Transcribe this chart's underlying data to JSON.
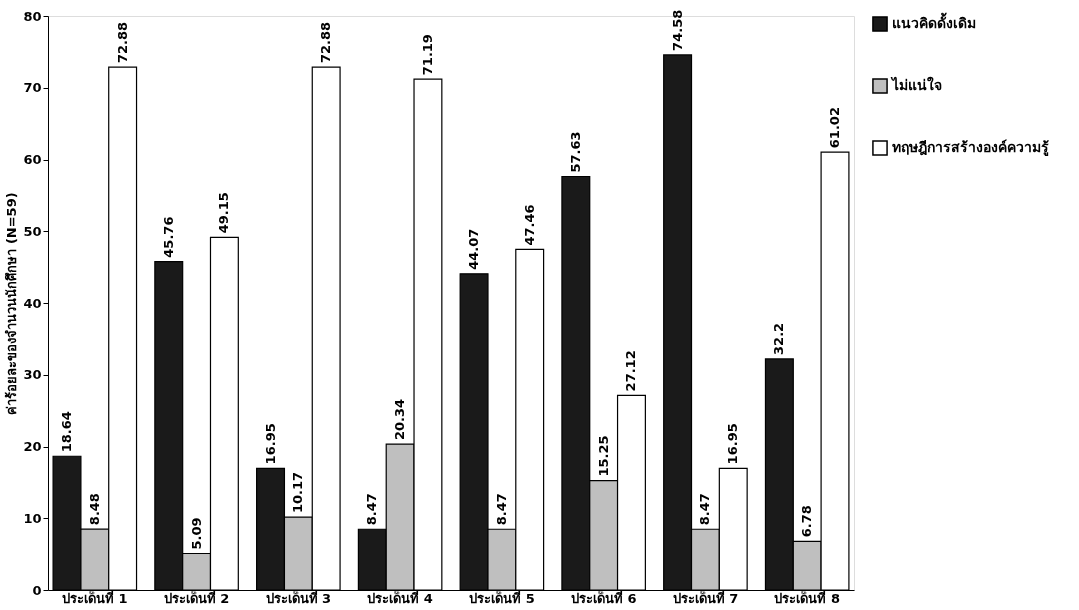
{
  "chart_data": {
    "type": "bar",
    "ylabel": "ค่าร้อยละของจำนวนนักศึกษา (N=59)",
    "categories": [
      "ประเด็นที่ 1",
      "ประเด็นที่ 2",
      "ประเด็นที่ 3",
      "ประเด็นที่ 4",
      "ประเด็นที่ 5",
      "ประเด็นที่ 6",
      "ประเด็นที่ 7",
      "ประเด็นที่ 8"
    ],
    "series": [
      {
        "name": "แนวคิดดั้งเดิม",
        "color": "#1a1a1a",
        "values": [
          18.64,
          45.76,
          16.95,
          8.47,
          44.07,
          57.63,
          74.58,
          32.2
        ]
      },
      {
        "name": "ไม่แน่ใจ",
        "color": "#bfbfbf",
        "values": [
          8.48,
          5.09,
          10.17,
          20.34,
          8.47,
          15.25,
          8.47,
          6.78
        ]
      },
      {
        "name": "ทฤษฎีการสร้างองค์ความรู้",
        "color": "#ffffff",
        "values": [
          72.88,
          49.15,
          72.88,
          71.19,
          47.46,
          27.12,
          16.95,
          61.02
        ]
      }
    ],
    "ylim": [
      0,
      80
    ],
    "yticks": [
      0,
      10,
      20,
      30,
      40,
      50,
      60,
      70,
      80
    ],
    "data_labels": true,
    "legend": "right",
    "grid": false
  }
}
